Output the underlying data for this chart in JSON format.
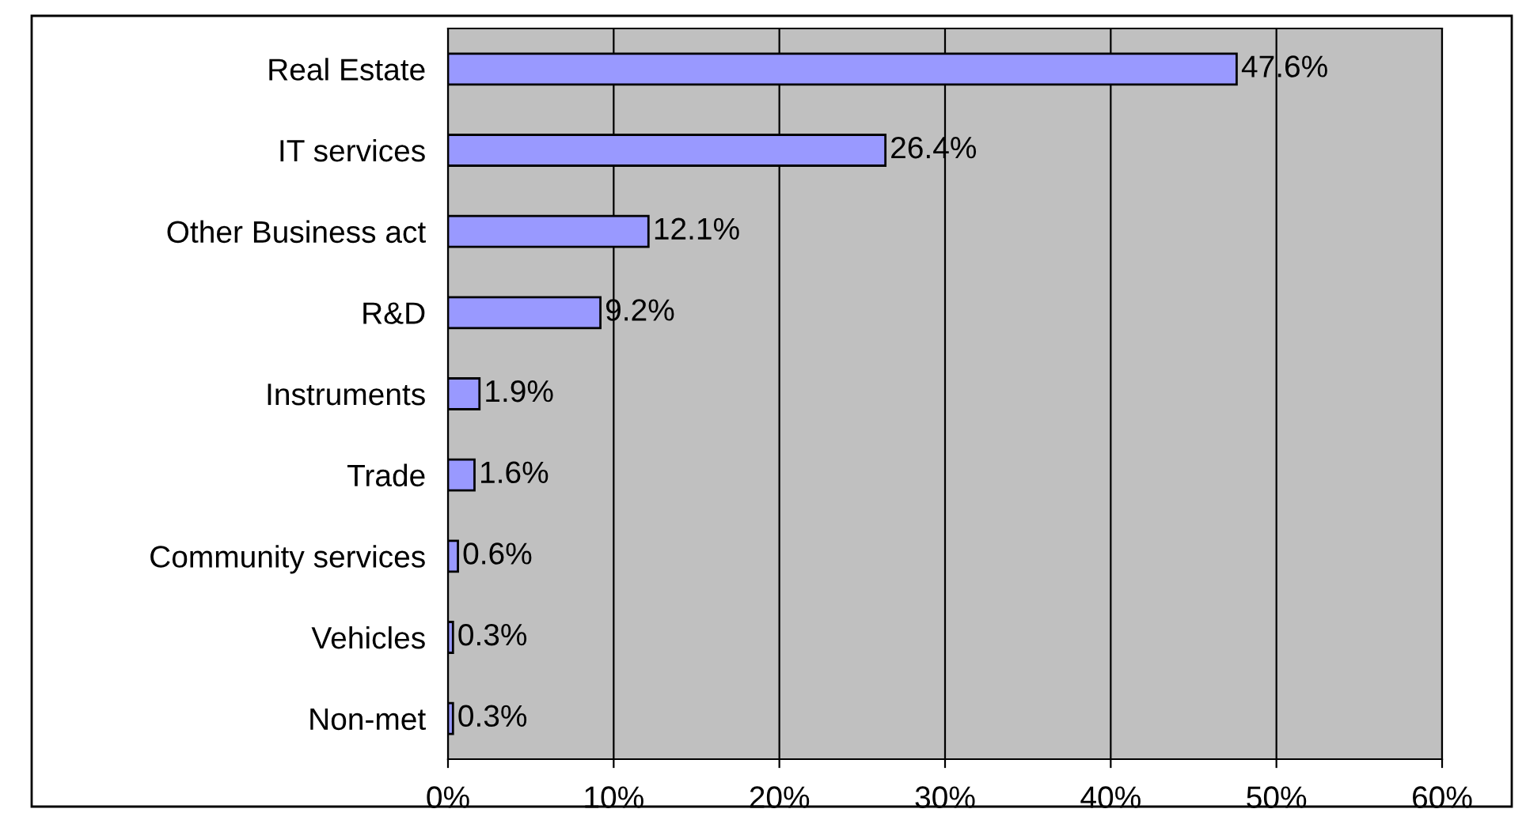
{
  "chart_data": {
    "type": "bar",
    "orientation": "horizontal",
    "categories": [
      "Real Estate",
      "IT services",
      "Other Business act",
      "R&D",
      "Instruments",
      "Trade",
      "Community services",
      "Vehicles",
      "Non-met"
    ],
    "values": [
      47.6,
      26.4,
      12.1,
      9.2,
      1.9,
      1.6,
      0.6,
      0.3,
      0.3
    ],
    "value_labels": [
      "47.6%",
      "26.4%",
      "12.1%",
      "9.2%",
      "1.9%",
      "1.6%",
      "0.6%",
      "0.3%",
      "0.3%"
    ],
    "color": "#9999ff",
    "xlim": [
      0,
      60
    ],
    "xticks": [
      {
        "value": 0,
        "label": "0%"
      },
      {
        "value": 10,
        "label": "10%"
      },
      {
        "value": 20,
        "label": "20%"
      },
      {
        "value": 30,
        "label": "30%"
      },
      {
        "value": 40,
        "label": "40%"
      },
      {
        "value": 50,
        "label": "50%"
      },
      {
        "value": 60,
        "label": "60%"
      }
    ],
    "grid": "x",
    "legend": false
  }
}
